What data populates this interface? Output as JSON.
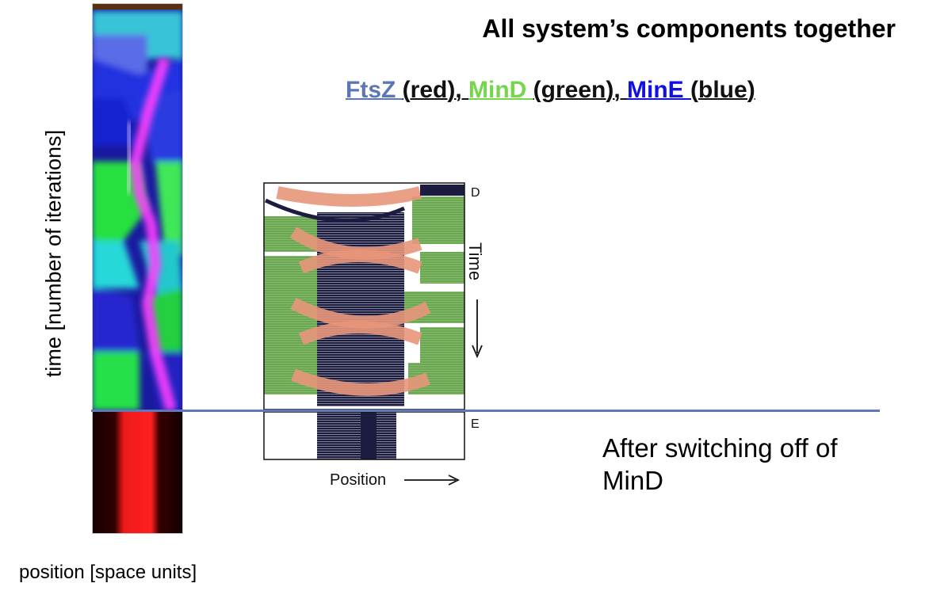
{
  "title": "All system’s components together",
  "legend": {
    "ftsz": "FtsZ ",
    "ftsz_color": " (red), ",
    "mind": "MinD ",
    "mind_color": "(green), ",
    "mine": "MinE ",
    "mine_color": "(blue)"
  },
  "axis": {
    "y_label": "time [number of iterations]",
    "x_label": "position [space units]"
  },
  "inset": {
    "label_D": "D",
    "label_E": "E",
    "time_label": "Time",
    "position_label": "Position"
  },
  "after_note": "After switching off of MinD",
  "colors": {
    "ftsz": "#5b78b4",
    "mind": "#74d64a",
    "mine": "#1212e0",
    "divider": "#5f79b6",
    "exp_green": "#6aa84f",
    "exp_salmon": "#e8967a",
    "exp_dark": "#1c1c40"
  }
}
